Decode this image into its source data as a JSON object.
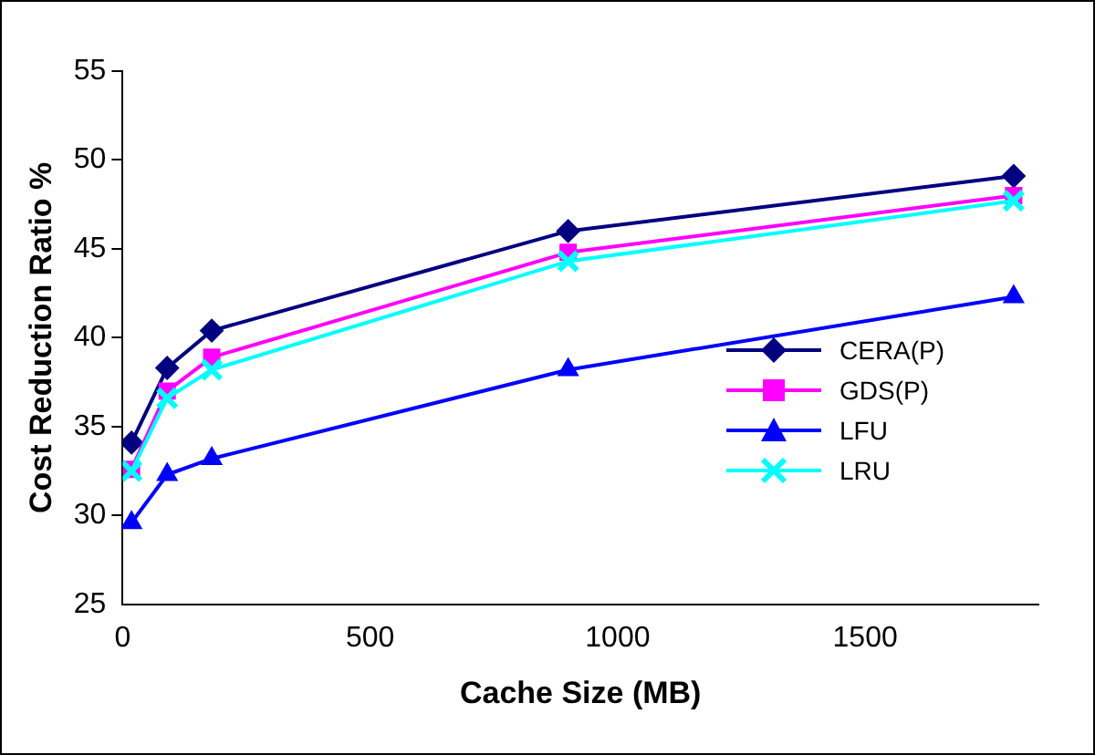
{
  "chart_data": {
    "type": "line",
    "xlabel": "Cache Size (MB)",
    "ylabel": "Cost Reduction Ratio %",
    "x": [
      18,
      90,
      180,
      900,
      1800
    ],
    "series": [
      {
        "name": "CERA(P)",
        "color": "#000080",
        "marker": "diamond",
        "values": [
          34.1,
          38.3,
          40.4,
          46.0,
          49.1
        ]
      },
      {
        "name": "GDS(P)",
        "color": "#ff00ff",
        "marker": "square",
        "values": [
          32.6,
          37.0,
          38.9,
          44.8,
          48.0
        ]
      },
      {
        "name": "LFU",
        "color": "#0000ff",
        "marker": "triangle",
        "values": [
          29.6,
          32.3,
          33.2,
          38.2,
          42.3
        ]
      },
      {
        "name": "LRU",
        "color": "#00ffff",
        "marker": "cross",
        "values": [
          32.5,
          36.6,
          38.2,
          44.3,
          47.7
        ]
      }
    ],
    "xlim": [
      0,
      1850
    ],
    "xticks": [
      0,
      500,
      1000,
      1500
    ],
    "ylim": [
      25,
      55
    ],
    "yticks": [
      25,
      30,
      35,
      40,
      45,
      50,
      55
    ],
    "grid": false,
    "legend": "right",
    "line_style": "solid"
  }
}
